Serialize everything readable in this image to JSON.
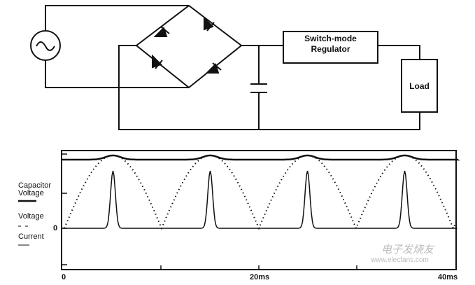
{
  "circuit": {
    "regulator_label": [
      "Switch-mode",
      "Regulator"
    ],
    "load_label": "Load"
  },
  "chart_data": {
    "type": "line",
    "legend": [
      "Capacitor Voltage",
      "Voltage",
      "Current"
    ],
    "legend_markers": [
      "solid thick",
      "dotted",
      "solid"
    ],
    "x_ticks": [
      "0",
      "20ms",
      "40ms"
    ],
    "y_tick_label": "0",
    "period_ms": 10,
    "series": [
      {
        "name": "Capacitor Voltage",
        "style": "solid thick",
        "description_values": "near-constant at ~0.95 of peak, rising slightly at each voltage peak"
      },
      {
        "name": "Voltage",
        "style": "dotted",
        "peaks_ms": [
          5,
          15,
          25,
          35
        ]
      },
      {
        "name": "Current",
        "style": "solid",
        "peaks_ms": [
          5,
          15,
          25,
          35
        ]
      }
    ],
    "xlim": [
      0,
      40
    ]
  },
  "watermark": {
    "cn": "电子发烧友",
    "url": "www.elecfans.com"
  }
}
